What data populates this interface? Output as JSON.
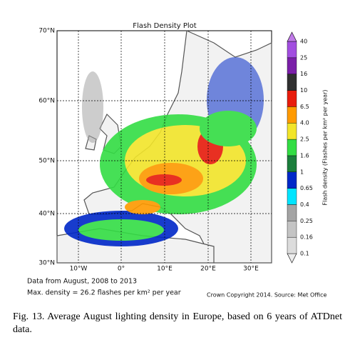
{
  "title": "Flash Density Plot",
  "lat_labels": [
    "70°N",
    "60°N",
    "50°N",
    "40°N",
    "30°N"
  ],
  "lon_labels": [
    "10°W",
    "0°",
    "10°E",
    "20°E",
    "30°E"
  ],
  "colorbar": {
    "label": "Flash density (Flashes per km² per year)",
    "levels": [
      "0.1",
      "0.16",
      "0.25",
      "0.4",
      "0.65",
      "1",
      "1.6",
      "2.5",
      "4.0",
      "6.5",
      "10",
      "16",
      "25",
      "40"
    ],
    "colors": [
      "#ececec",
      "#dcdcdc",
      "#c4c4c4",
      "#a4a4a4",
      "#00e5ff",
      "#0028c8",
      "#1b7e3c",
      "#33dd44",
      "#f2e52a",
      "#ff9a00",
      "#e81c0c",
      "#303030",
      "#7a1fa8",
      "#a24ee0",
      "#c07ae8"
    ]
  },
  "notes": [
    "Data from August, 2008 to 2013",
    "Max. density = 26.2 flashes per km² per year"
  ],
  "copyright": "Crown Copyright 2014. Source: Met Office",
  "caption": "Fig. 13. Average August lighting density in Europe, based on 6 years of ATDnet data."
}
